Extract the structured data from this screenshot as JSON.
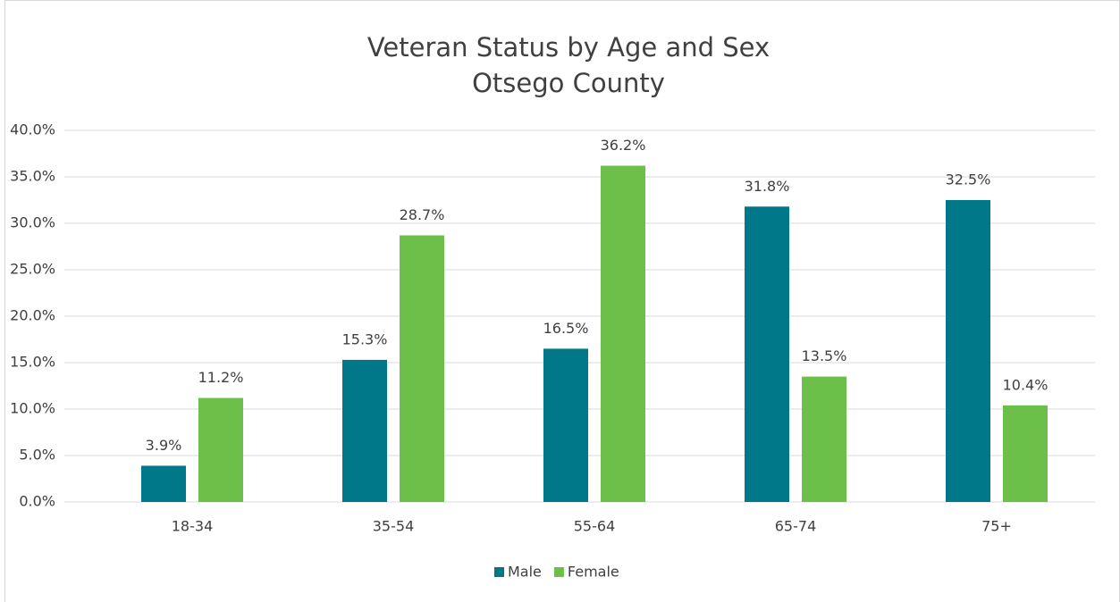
{
  "chart_data": {
    "type": "bar",
    "title": "Veteran Status by Age and Sex",
    "subtitle": "Otsego County",
    "categories": [
      "18-34",
      "35-54",
      "55-64",
      "65-74",
      "75+"
    ],
    "series": [
      {
        "name": "Male",
        "color": "#00788a",
        "values": [
          3.9,
          15.3,
          16.5,
          31.8,
          32.5
        ],
        "value_labels": [
          "3.9%",
          "15.3%",
          "16.5%",
          "31.8%",
          "32.5%"
        ]
      },
      {
        "name": "Female",
        "color": "#6cc04a",
        "values": [
          11.2,
          28.7,
          36.2,
          13.5,
          10.4
        ],
        "value_labels": [
          "11.2%",
          "28.7%",
          "36.2%",
          "13.5%",
          "10.4%"
        ]
      }
    ],
    "ylim": [
      0,
      40
    ],
    "yticks": [
      {
        "value": 0,
        "label": "0.0%"
      },
      {
        "value": 5,
        "label": "5.0%"
      },
      {
        "value": 10,
        "label": "10.0%"
      },
      {
        "value": 15,
        "label": "15.0%"
      },
      {
        "value": 20,
        "label": "20.0%"
      },
      {
        "value": 25,
        "label": "25.0%"
      },
      {
        "value": 30,
        "label": "30.0%"
      },
      {
        "value": 35,
        "label": "35.0%"
      },
      {
        "value": 40,
        "label": "40.0%"
      }
    ],
    "grid": true,
    "legend": "bottom"
  }
}
